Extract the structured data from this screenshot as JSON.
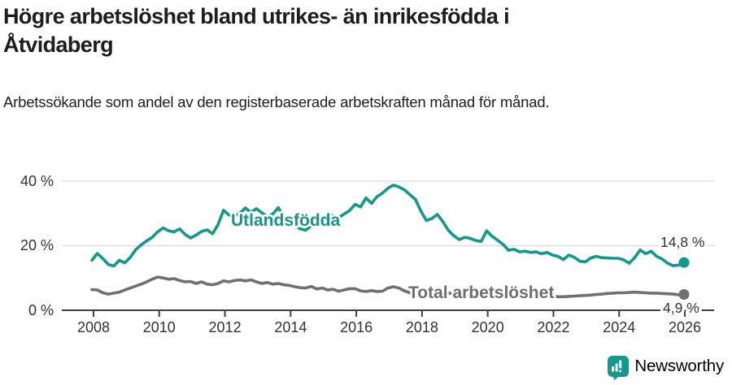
{
  "header": {
    "title": "Högre arbetslöshet bland utrikes- än inrikesfödda i Åtvidaberg",
    "subtitle": "Arbetssökande som andel av den registerbaserade arbetskraften månad för månad."
  },
  "chart_data": {
    "type": "line",
    "title": "Högre arbetslöshet bland utrikes- än inrikesfödda i Åtvidaberg",
    "subtitle": "Arbetssökande som andel av den registerbaserade arbetskraften månad för månad.",
    "x_range": [
      2008,
      2026
    ],
    "points_per_year": 6,
    "x_tick_labels": [
      "2008",
      "2010",
      "2012",
      "2014",
      "2016",
      "2018",
      "2020",
      "2022",
      "2024",
      "2026"
    ],
    "y_ticks": [
      0,
      20,
      40
    ],
    "y_tick_labels": [
      "0 %",
      "20 %",
      "40 %"
    ],
    "ylim": [
      0,
      44
    ],
    "grid": "horizontal",
    "series": [
      {
        "name": "Utlandsfödda",
        "color": "#12998b",
        "end_label": "14,8 %",
        "end_value": 14.8,
        "values": [
          15.5,
          17.6,
          16.0,
          14.2,
          13.7,
          15.5,
          14.7,
          16.4,
          18.8,
          20.3,
          21.5,
          22.6,
          24.3,
          25.5,
          24.6,
          24.3,
          25.2,
          23.5,
          22.4,
          23.3,
          24.4,
          24.9,
          23.7,
          26.5,
          31.0,
          29.5,
          29.2,
          30.1,
          31.7,
          30.3,
          31.5,
          30.2,
          29.0,
          29.8,
          31.8,
          28.5,
          27.3,
          26.4,
          25.2,
          24.8,
          26.2,
          26.9,
          27.5,
          28.4,
          29.3,
          28.7,
          29.8,
          30.9,
          32.8,
          32.0,
          34.8,
          33.1,
          35.2,
          36.3,
          37.8,
          38.8,
          38.2,
          37.3,
          35.8,
          34.4,
          30.8,
          27.8,
          28.4,
          29.7,
          27.5,
          24.8,
          23.1,
          21.9,
          22.6,
          22.3,
          21.6,
          21.3,
          24.6,
          22.9,
          21.7,
          20.4,
          18.6,
          18.9,
          18.1,
          18.3,
          17.9,
          18.1,
          17.5,
          17.9,
          17.1,
          16.7,
          15.7,
          17.1,
          16.4,
          15.2,
          15.0,
          16.2,
          16.7,
          16.3,
          16.2,
          16.1,
          16.1,
          15.6,
          14.6,
          16.3,
          18.7,
          17.5,
          18.3,
          16.7,
          15.9,
          14.6,
          13.8,
          14.0,
          14.8
        ]
      },
      {
        "name": "Total arbetslöshet",
        "color": "#707070",
        "label_color": "#6e6e6e",
        "end_label": "4,9 %",
        "end_value": 4.9,
        "values": [
          6.4,
          6.3,
          5.4,
          5.0,
          5.3,
          5.6,
          6.3,
          6.9,
          7.5,
          8.1,
          8.8,
          9.6,
          10.3,
          10.0,
          9.6,
          9.8,
          9.2,
          8.8,
          8.9,
          8.3,
          8.8,
          8.1,
          7.9,
          8.3,
          9.1,
          8.8,
          9.2,
          9.4,
          9.1,
          9.4,
          8.8,
          8.3,
          8.6,
          8.1,
          8.3,
          7.9,
          7.7,
          7.3,
          7.0,
          6.9,
          7.4,
          6.6,
          6.9,
          6.3,
          6.5,
          5.9,
          6.3,
          6.7,
          6.7,
          6.0,
          5.8,
          6.1,
          5.8,
          5.9,
          6.9,
          7.3,
          6.9,
          6.0,
          5.4,
          5.3,
          5.4,
          5.6,
          5.3,
          5.0,
          5.2,
          5.4,
          5.0,
          4.8,
          4.9,
          4.7,
          4.8,
          5.0,
          5.3,
          6.3,
          6.6,
          6.2,
          5.9,
          5.7,
          5.4,
          5.1,
          4.8,
          4.6,
          4.4,
          4.3,
          4.3,
          4.2,
          4.2,
          4.3,
          4.4,
          4.5,
          4.6,
          4.7,
          4.9,
          5.0,
          5.2,
          5.3,
          5.4,
          5.4,
          5.5,
          5.6,
          5.5,
          5.4,
          5.3,
          5.3,
          5.2,
          5.1,
          5.0,
          4.8,
          4.9
        ]
      }
    ]
  },
  "footer": {
    "brand": "Newsworthy",
    "brand_color": "#12998b",
    "logo_icon": "newsworthy-bubble-chart-icon"
  }
}
